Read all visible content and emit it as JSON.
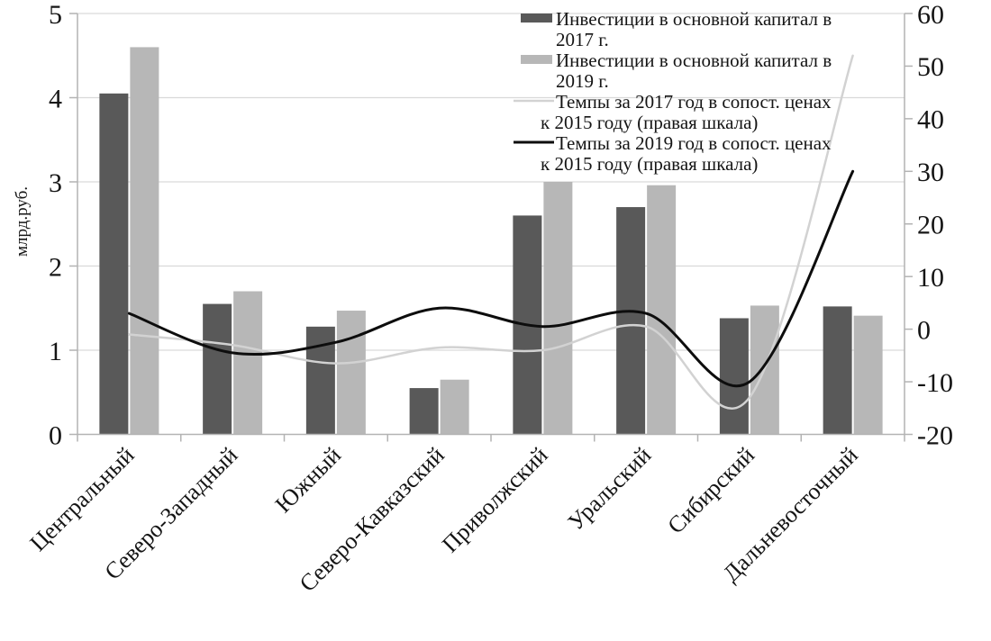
{
  "chart_data": {
    "type": "combo-bar-line",
    "categories": [
      "Центральный",
      "Северо-Западный",
      "Южный",
      "Северо-Кавказский",
      "Приволжский",
      "Уральский",
      "Сибирский",
      "Дальневосточный"
    ],
    "bar_series": [
      {
        "name": "Инвестиции в основной капитал в 2017 г.",
        "axis": "left",
        "color": "#595959",
        "values": [
          4.05,
          1.55,
          1.28,
          0.55,
          2.6,
          2.7,
          1.38,
          1.52
        ]
      },
      {
        "name": "Инвестиции в основной капитал в 2019 г.",
        "axis": "left",
        "color": "#b7b7b7",
        "values": [
          4.6,
          1.7,
          1.47,
          0.65,
          3.0,
          2.96,
          1.53,
          1.41
        ]
      }
    ],
    "line_series": [
      {
        "name": "Темпы за 2017 год в сопост. ценах к 2015 году (правая шкала)",
        "axis": "right",
        "color": "#d2d2d2",
        "width": 2.5,
        "values": [
          -1,
          -3,
          -6.5,
          -3.5,
          -4,
          0.5,
          -13,
          52
        ]
      },
      {
        "name": "Темпы за 2019 год в сопост. ценах к 2015 году (правая шкала)",
        "axis": "right",
        "color": "#0d0d0d",
        "width": 3,
        "values": [
          3,
          -4.5,
          -2.5,
          4,
          0.5,
          3,
          -10,
          30
        ]
      }
    ],
    "left_axis": {
      "label": "млрд.руб.",
      "min": 0,
      "max": 5,
      "ticks": [
        0,
        1,
        2,
        3,
        4,
        5
      ]
    },
    "right_axis": {
      "min": -20,
      "max": 60,
      "ticks": [
        -20,
        -10,
        0,
        10,
        20,
        30,
        40,
        50,
        60
      ]
    },
    "legend": [
      {
        "marker": "bar",
        "color": "#595959",
        "lines": [
          "Инвестиции в основной капитал в",
          "2017 г."
        ]
      },
      {
        "marker": "bar",
        "color": "#b7b7b7",
        "lines": [
          "Инвестиции в основной капитал в",
          "2019 г."
        ]
      },
      {
        "marker": "line",
        "color": "#d2d2d2",
        "lines": [
          "Темпы за 2017 год в сопост. ценах",
          "к 2015 году (правая шкала)"
        ]
      },
      {
        "marker": "line",
        "color": "#0d0d0d",
        "lines": [
          "Темпы за 2019 год в сопост. ценах",
          "к 2015 году (правая шкала)"
        ]
      }
    ],
    "layout_hints": {
      "grid": "horizontal-on-left-axis-integers",
      "legend_position": "top-right-inside",
      "x_labels_rotation_deg": -45
    },
    "colors": {
      "gridline": "#d9d9d9",
      "axis_line": "#b3b3b3",
      "text": "#151515",
      "background": "#ffffff"
    }
  }
}
